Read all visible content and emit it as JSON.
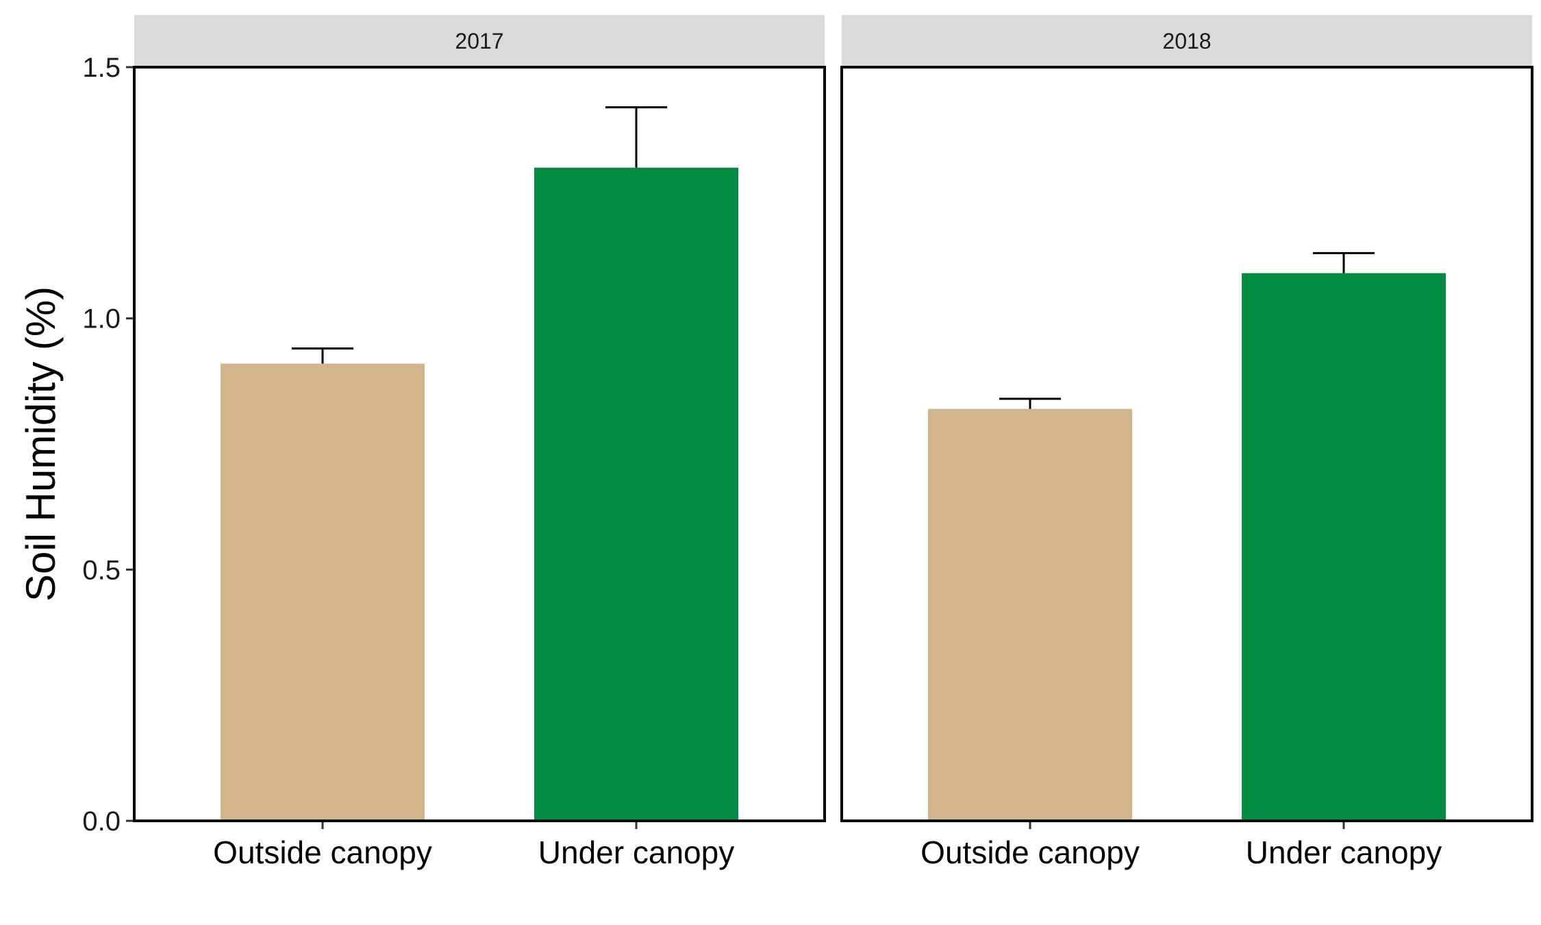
{
  "chart_data": {
    "type": "bar",
    "ylabel": "Soil Humidity (%)",
    "xlabel": "",
    "ylim": [
      0,
      1.5
    ],
    "yticks": [
      "0.0",
      "0.5",
      "1.0",
      "1.5"
    ],
    "grid": false,
    "legend": "none",
    "categories": [
      "Outside canopy",
      "Under canopy"
    ],
    "colors": {
      "Outside canopy": "#d2b48c",
      "Under canopy": "#008b45"
    },
    "panels": [
      {
        "label": "2017",
        "values": [
          0.91,
          1.3
        ],
        "error_upper": [
          0.94,
          1.42
        ]
      },
      {
        "label": "2018",
        "values": [
          0.82,
          1.09
        ],
        "error_upper": [
          0.84,
          1.13
        ]
      }
    ]
  }
}
